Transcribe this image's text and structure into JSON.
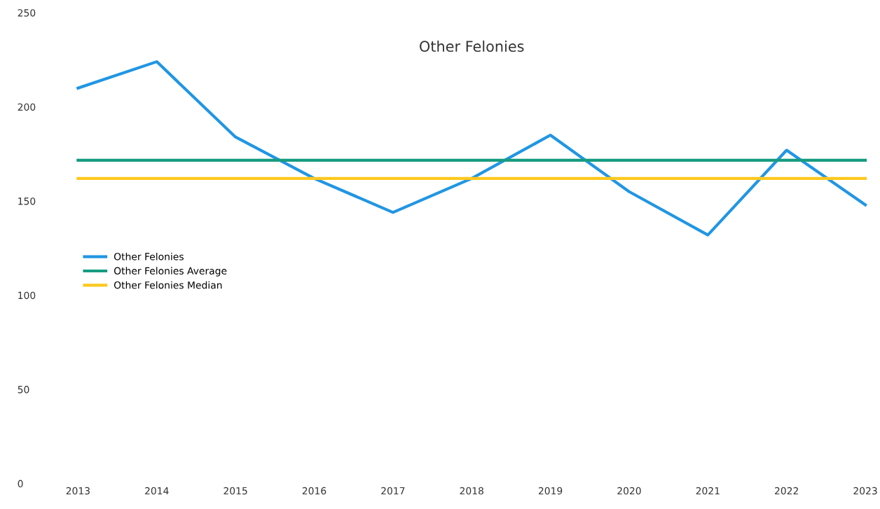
{
  "chart_data": {
    "type": "line",
    "title": "Other Felonies",
    "categories": [
      "2013",
      "2014",
      "2015",
      "2016",
      "2017",
      "2018",
      "2019",
      "2020",
      "2021",
      "2022",
      "2023"
    ],
    "series": [
      {
        "name": "Other Felonies",
        "color": "#2196e3",
        "values": [
          210,
          224,
          184,
          162,
          144,
          162,
          185,
          155,
          132,
          177,
          148
        ]
      },
      {
        "name": "Other Felonies Average",
        "color": "#179c80",
        "values": [
          171.7,
          171.7,
          171.7,
          171.7,
          171.7,
          171.7,
          171.7,
          171.7,
          171.7,
          171.7,
          171.7
        ]
      },
      {
        "name": "Other Felonies Median",
        "color": "#fec81e",
        "values": [
          162,
          162,
          162,
          162,
          162,
          162,
          162,
          162,
          162,
          162,
          162
        ]
      }
    ],
    "ylim": [
      0,
      250
    ],
    "yticks": [
      0,
      50,
      100,
      150,
      200,
      250
    ],
    "grid": false,
    "legend": "left",
    "marker": "none",
    "line_style": "solid"
  }
}
